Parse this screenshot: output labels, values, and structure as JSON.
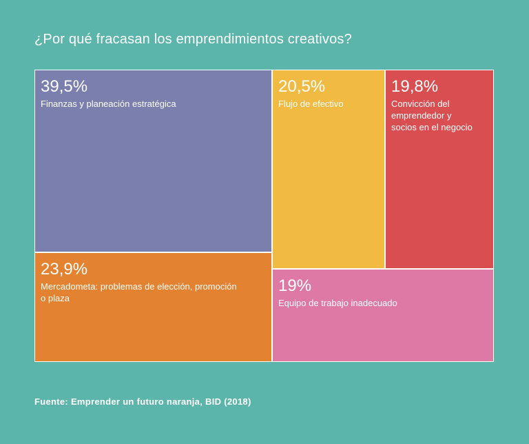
{
  "chart_data": {
    "type": "treemap",
    "title": "¿Por qué fracasan los emprendimientos creativos?",
    "source": "Fuente: Emprender un futuro naranja, BID (2018)",
    "items": [
      {
        "id": "finanzas",
        "value": 39.5,
        "value_label": "39,5%",
        "label": "Finanzas y planeación estratégica",
        "color": "#7b7fad"
      },
      {
        "id": "mercado",
        "value": 23.9,
        "value_label": "23,9%",
        "label": "Mercadometa: problemas de elección, promoción\no plaza",
        "color": "#e38230"
      },
      {
        "id": "flujo",
        "value": 20.5,
        "value_label": "20,5%",
        "label": "Flujo de efectivo",
        "color": "#f1bb43"
      },
      {
        "id": "conviccion",
        "value": 19.8,
        "value_label": "19,8%",
        "label": "Convicción del\nemprendedor  y\nsocios en el negocio",
        "color": "#d94f51"
      },
      {
        "id": "equipo",
        "value": 19,
        "value_label": "19%",
        "label": "Equipo de trabajo inadecuado",
        "color": "#de79a6"
      }
    ]
  }
}
